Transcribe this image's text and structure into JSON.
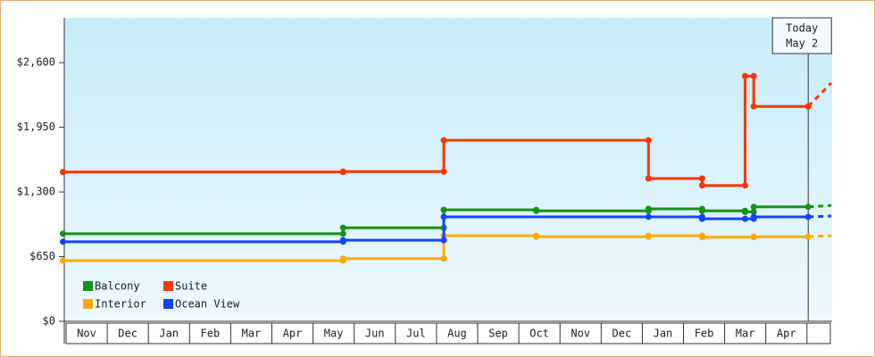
{
  "chart_data": {
    "type": "step-line",
    "categories": [
      "Nov",
      "Dec",
      "Jan",
      "Feb",
      "Mar",
      "Apr",
      "May",
      "Jun",
      "Jul",
      "Aug",
      "Sep",
      "Oct",
      "Nov",
      "Dec",
      "Jan",
      "Feb",
      "Mar",
      "Apr"
    ],
    "xlim": [
      -0.1,
      18.55
    ],
    "ylim": [
      0,
      3050
    ],
    "yticks": [
      {
        "value": 0,
        "label": "$0"
      },
      {
        "value": 650,
        "label": "$650"
      },
      {
        "value": 1300,
        "label": "$1,300"
      },
      {
        "value": 1950,
        "label": "$1,950"
      },
      {
        "value": 2600,
        "label": "$2,600"
      }
    ],
    "today": {
      "x": 17.97,
      "label": [
        "Today",
        "May 2"
      ]
    },
    "legend": "bottom-left",
    "series": [
      {
        "name": "Balcony",
        "color": "#139313",
        "x": [
          -0.09,
          6.7,
          9.14,
          11.38,
          14.1,
          15.4,
          16.44,
          16.65,
          17.97,
          18.53
        ],
        "values": [
          880,
          940,
          1120,
          1110,
          1130,
          1110,
          1100,
          1150,
          1150,
          1165
        ]
      },
      {
        "name": "Suite",
        "color": "#ff3300",
        "x": [
          -0.09,
          6.7,
          9.14,
          14.1,
          15.4,
          16.44,
          16.65,
          17.97,
          18.53
        ],
        "values": [
          1500,
          1505,
          1820,
          1435,
          1365,
          2465,
          2160,
          2160,
          2395
        ]
      },
      {
        "name": "Interior",
        "color": "#ffaa00",
        "x": [
          -0.09,
          6.7,
          9.14,
          11.38,
          14.1,
          15.4,
          16.65,
          17.97,
          18.53
        ],
        "values": [
          610,
          630,
          860,
          850,
          860,
          845,
          850,
          850,
          860
        ]
      },
      {
        "name": "Ocean View",
        "color": "#1144ff",
        "x": [
          -0.09,
          6.7,
          9.14,
          14.1,
          15.4,
          16.44,
          16.65,
          17.97,
          18.53
        ],
        "values": [
          800,
          815,
          1050,
          1050,
          1030,
          1030,
          1050,
          1050,
          1058
        ]
      }
    ]
  }
}
